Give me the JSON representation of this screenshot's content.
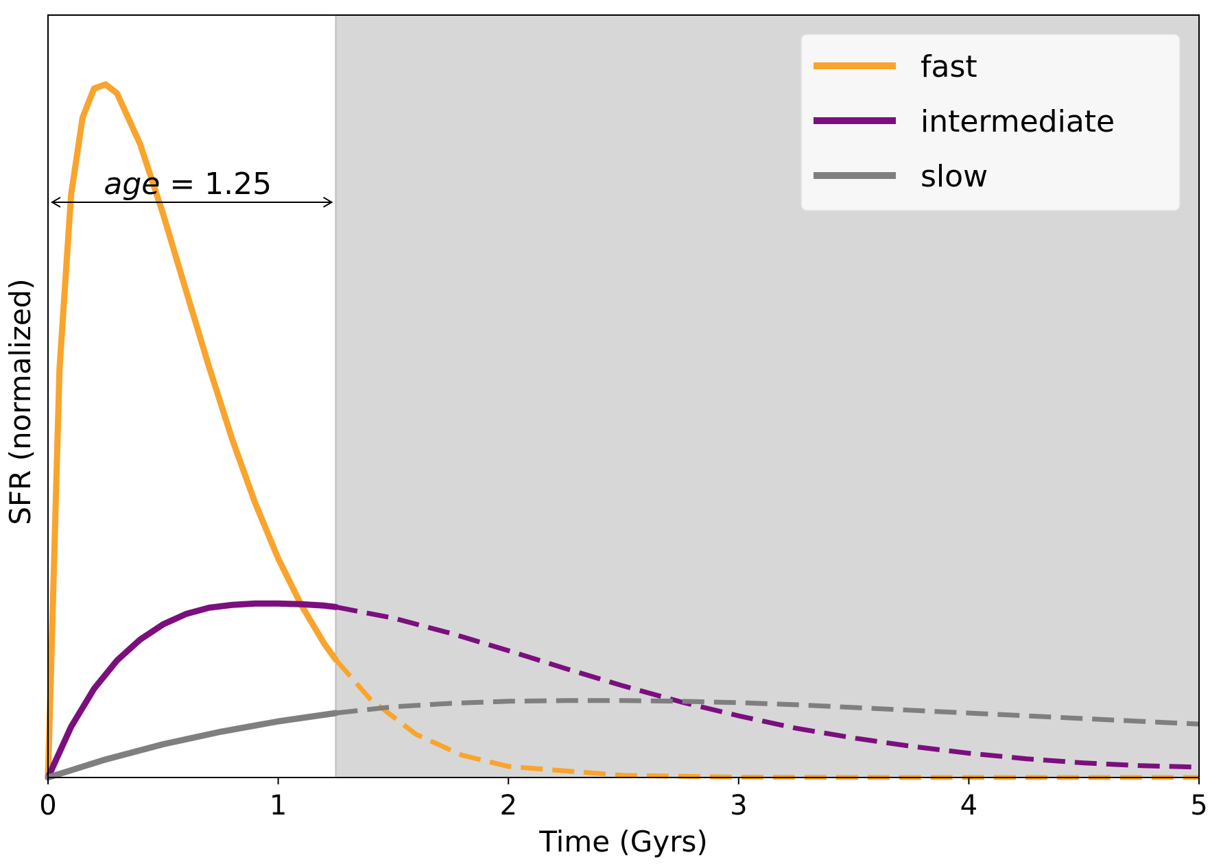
{
  "chart_data": {
    "type": "line",
    "title": "",
    "xlabel": "Time (Gyrs)",
    "ylabel": "SFR (normalized)",
    "xlim": [
      0,
      5
    ],
    "ylim": [
      0,
      1.1
    ],
    "x_ticks": [
      "0",
      "1",
      "2",
      "3",
      "4",
      "5"
    ],
    "y_ticks": [],
    "grid": false,
    "legend_position": "top-right",
    "observed_until": 1.25,
    "observed_region_style": "solid",
    "future_region_style": "dashed",
    "future_region_shading": "#d7d7d7",
    "annotation": {
      "var": "age",
      "op": " = ",
      "value": "1.25",
      "arrow_from": 0,
      "arrow_to": 1.25,
      "arrow_y": 0.83
    },
    "series": [
      {
        "name": "fast",
        "color": "#f9a42c",
        "x": [
          0,
          0.05,
          0.1,
          0.15,
          0.2,
          0.25,
          0.3,
          0.4,
          0.5,
          0.6,
          0.7,
          0.8,
          0.9,
          1.0,
          1.1,
          1.2,
          1.25,
          1.4,
          1.6,
          1.8,
          2.0,
          2.5,
          3.0,
          3.5,
          4.0,
          4.5,
          5.0
        ],
        "y": [
          0,
          0.59,
          0.84,
          0.952,
          0.994,
          1.0,
          0.987,
          0.914,
          0.813,
          0.702,
          0.592,
          0.488,
          0.396,
          0.316,
          0.249,
          0.193,
          0.17,
          0.113,
          0.062,
          0.032,
          0.016,
          0.003,
          0.0005,
          0.0001,
          0.0,
          0.0,
          0.0
        ]
      },
      {
        "name": "intermediate",
        "color": "#7b0f7e",
        "x": [
          0,
          0.1,
          0.2,
          0.3,
          0.4,
          0.5,
          0.6,
          0.7,
          0.8,
          0.9,
          1.0,
          1.1,
          1.2,
          1.25,
          1.5,
          1.75,
          2.0,
          2.25,
          2.5,
          2.75,
          3.0,
          3.25,
          3.5,
          3.75,
          4.0,
          4.25,
          4.5,
          4.75,
          5.0
        ],
        "y": [
          0,
          0.073,
          0.128,
          0.169,
          0.199,
          0.221,
          0.236,
          0.245,
          0.249,
          0.251,
          0.251,
          0.25,
          0.248,
          0.246,
          0.23,
          0.208,
          0.183,
          0.157,
          0.132,
          0.109,
          0.089,
          0.071,
          0.057,
          0.045,
          0.035,
          0.027,
          0.021,
          0.017,
          0.015
        ]
      },
      {
        "name": "slow",
        "color": "#7f7f7f",
        "x": [
          0,
          0.25,
          0.5,
          0.75,
          1.0,
          1.25,
          1.5,
          1.75,
          2.0,
          2.25,
          2.5,
          2.75,
          3.0,
          3.25,
          3.5,
          3.75,
          4.0,
          4.25,
          4.5,
          4.75,
          5.0
        ],
        "y": [
          0,
          0.026,
          0.048,
          0.066,
          0.081,
          0.093,
          0.102,
          0.107,
          0.11,
          0.111,
          0.111,
          0.11,
          0.108,
          0.105,
          0.101,
          0.097,
          0.093,
          0.089,
          0.085,
          0.081,
          0.077
        ]
      }
    ]
  }
}
